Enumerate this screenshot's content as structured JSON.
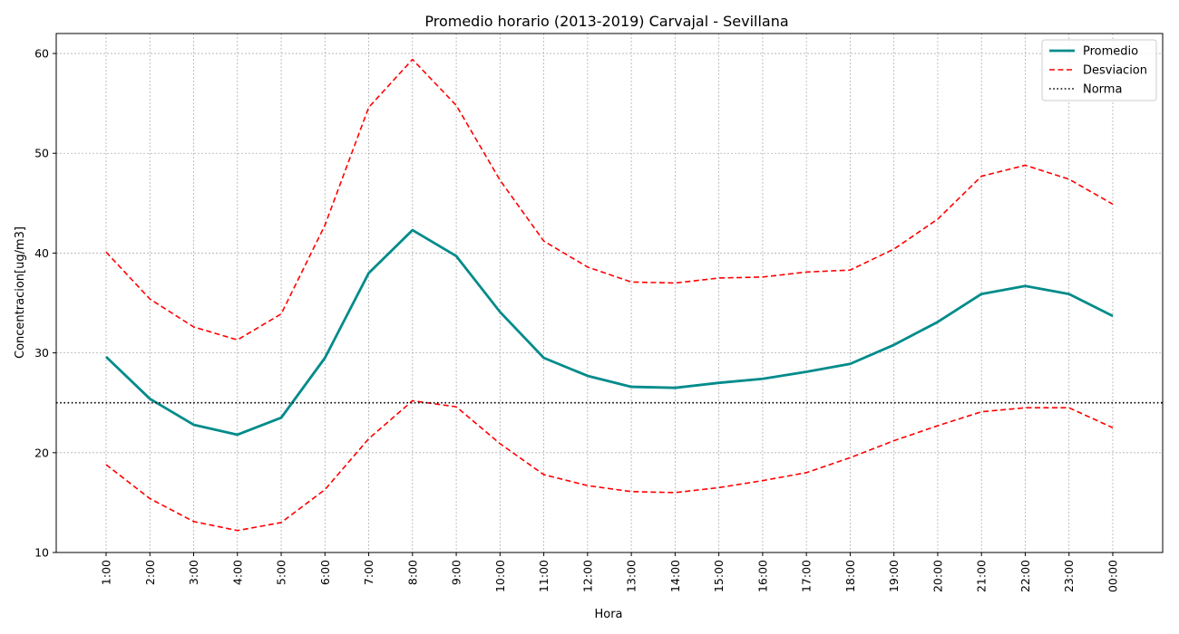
{
  "chart_data": {
    "type": "line",
    "title": "Promedio horario (2013-2019) Carvajal - Sevillana",
    "xlabel": "Hora",
    "ylabel": "Concentracion[ug/m3]",
    "categories": [
      "1:00",
      "2:00",
      "3:00",
      "4:00",
      "5:00",
      "6:00",
      "7:00",
      "8:00",
      "9:00",
      "10:00",
      "11:00",
      "12:00",
      "13:00",
      "14:00",
      "15:00",
      "16:00",
      "17:00",
      "18:00",
      "19:00",
      "20:00",
      "21:00",
      "22:00",
      "23:00",
      "00:00"
    ],
    "ylim": [
      10,
      62
    ],
    "yticks": [
      10,
      20,
      30,
      40,
      50,
      60
    ],
    "grid": true,
    "legend_position": "top-right",
    "series": [
      {
        "name": "Promedio",
        "style": "solid",
        "color": "#008b8b",
        "values": [
          29.6,
          25.4,
          22.8,
          21.8,
          23.5,
          29.5,
          38.0,
          42.3,
          39.7,
          34.1,
          29.5,
          27.7,
          26.6,
          26.5,
          27.0,
          27.4,
          28.1,
          28.9,
          30.8,
          33.1,
          35.9,
          36.7,
          35.9,
          33.7
        ]
      },
      {
        "name": "Desviacion",
        "style": "dashed",
        "color": "#ff0000",
        "values": [
          40.1,
          35.4,
          32.6,
          31.3,
          33.9,
          42.8,
          54.6,
          59.4,
          54.8,
          47.3,
          41.2,
          38.6,
          37.1,
          37.0,
          37.5,
          37.6,
          38.1,
          38.3,
          40.4,
          43.4,
          47.7,
          48.8,
          47.4,
          44.9
        ]
      },
      {
        "name": "",
        "style": "dashed",
        "color": "#ff0000",
        "values": [
          18.8,
          15.4,
          13.1,
          12.2,
          13.0,
          16.3,
          21.4,
          25.2,
          24.6,
          20.9,
          17.8,
          16.7,
          16.1,
          16.0,
          16.5,
          17.2,
          18.0,
          19.5,
          21.2,
          22.7,
          24.1,
          24.5,
          24.5,
          22.5
        ]
      },
      {
        "name": "Norma",
        "style": "dotted",
        "color": "#000000",
        "values": [
          25,
          25,
          25,
          25,
          25,
          25,
          25,
          25,
          25,
          25,
          25,
          25,
          25,
          25,
          25,
          25,
          25,
          25,
          25,
          25,
          25,
          25,
          25,
          25
        ]
      }
    ]
  }
}
